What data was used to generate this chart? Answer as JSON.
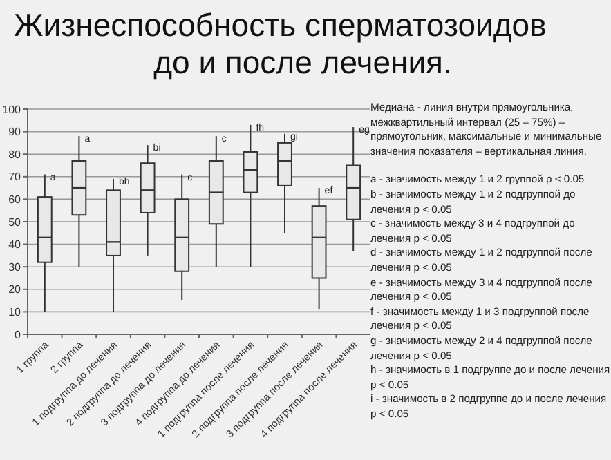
{
  "chart_data": {
    "type": "box",
    "title": "Жизнеспособность сперматозоидов\nдо и после лечения.",
    "categories": [
      "1 группа",
      "2 группа",
      "1 подгруппа до лечения",
      "2 подгруппа до лечения",
      "3 подгруппа до лечения",
      "4 подгруппа до лечения",
      "1 подгруппа после лечения",
      "2 подгруппа после лечения",
      "3 подгруппа после лечения",
      "4 подгруппа после лечения"
    ],
    "boxes": [
      {
        "low": 10,
        "q1": 32,
        "median": 43,
        "q3": 61,
        "high": 71
      },
      {
        "low": 30,
        "q1": 53,
        "median": 65,
        "q3": 77,
        "high": 88
      },
      {
        "low": 10,
        "q1": 35,
        "median": 41,
        "q3": 64,
        "high": 69
      },
      {
        "low": 35,
        "q1": 54,
        "median": 64,
        "q3": 76,
        "high": 84
      },
      {
        "low": 15,
        "q1": 28,
        "median": 43,
        "q3": 60,
        "high": 71
      },
      {
        "low": 30,
        "q1": 49,
        "median": 63,
        "q3": 77,
        "high": 88
      },
      {
        "low": 30,
        "q1": 63,
        "median": 73,
        "q3": 81,
        "high": 93
      },
      {
        "low": 45,
        "q1": 66,
        "median": 77,
        "q3": 85,
        "high": 89
      },
      {
        "low": 11,
        "q1": 25,
        "median": 43,
        "q3": 57,
        "high": 65
      },
      {
        "low": 37,
        "q1": 51,
        "median": 65,
        "q3": 75,
        "high": 92
      }
    ],
    "color": "#e8e8e8",
    "ylim": [
      0,
      100
    ],
    "yticks": [
      0,
      10,
      20,
      30,
      40,
      50,
      60,
      70,
      80,
      90,
      100
    ],
    "grid": "y",
    "annotations": [
      {
        "text": "a",
        "x": "1 группа",
        "y": 71
      },
      {
        "text": "a",
        "x": "2 группа",
        "y": 88
      },
      {
        "text": "bh",
        "x": "1 подгруппа до лечения",
        "y": 69
      },
      {
        "text": "bi",
        "x": "2 подгруппа до лечения",
        "y": 84
      },
      {
        "text": "c",
        "x": "3 подгруппа до лечения",
        "y": 71
      },
      {
        "text": "c",
        "x": "4 подгруппа до лечения",
        "y": 88
      },
      {
        "text": "fh",
        "x": "1 подгруппа после лечения",
        "y": 93
      },
      {
        "text": "gi",
        "x": "2 подгруппа после лечения",
        "y": 89
      },
      {
        "text": "ef",
        "x": "3 подгруппа после лечения",
        "y": 65
      },
      {
        "text": "eg",
        "x": "4 подгруппа после лечения",
        "y": 92
      },
      "Медиана - линия внутри прямоугольника, межквартильный интервал (25 – 75%) – прямоугольник, максимальные и минимальные значения показателя – вертикальная линия.",
      "a - значимость между 1 и 2 группой p < 0.05",
      "b - значимость между 1 и 2 подгруппой до лечения p < 0.05",
      "c - значимость между 3 и 4 подгруппой до лечения p < 0.05",
      "d - значимость между 1 и 2 подгруппой после лечения p < 0.05",
      "e - значимость между 3 и 4 подгруппой после лечения p < 0.05",
      "f - значимость между 1 и 3 подгруппой после лечения p < 0.05",
      "g - значимость между 2 и 4 подгруппой после лечения p < 0.05",
      "h - значимость в 1 подгруппе до и после лечения p < 0.05",
      "i - значимость в 2 подгруппе до и после лечения p < 0.05"
    ]
  }
}
